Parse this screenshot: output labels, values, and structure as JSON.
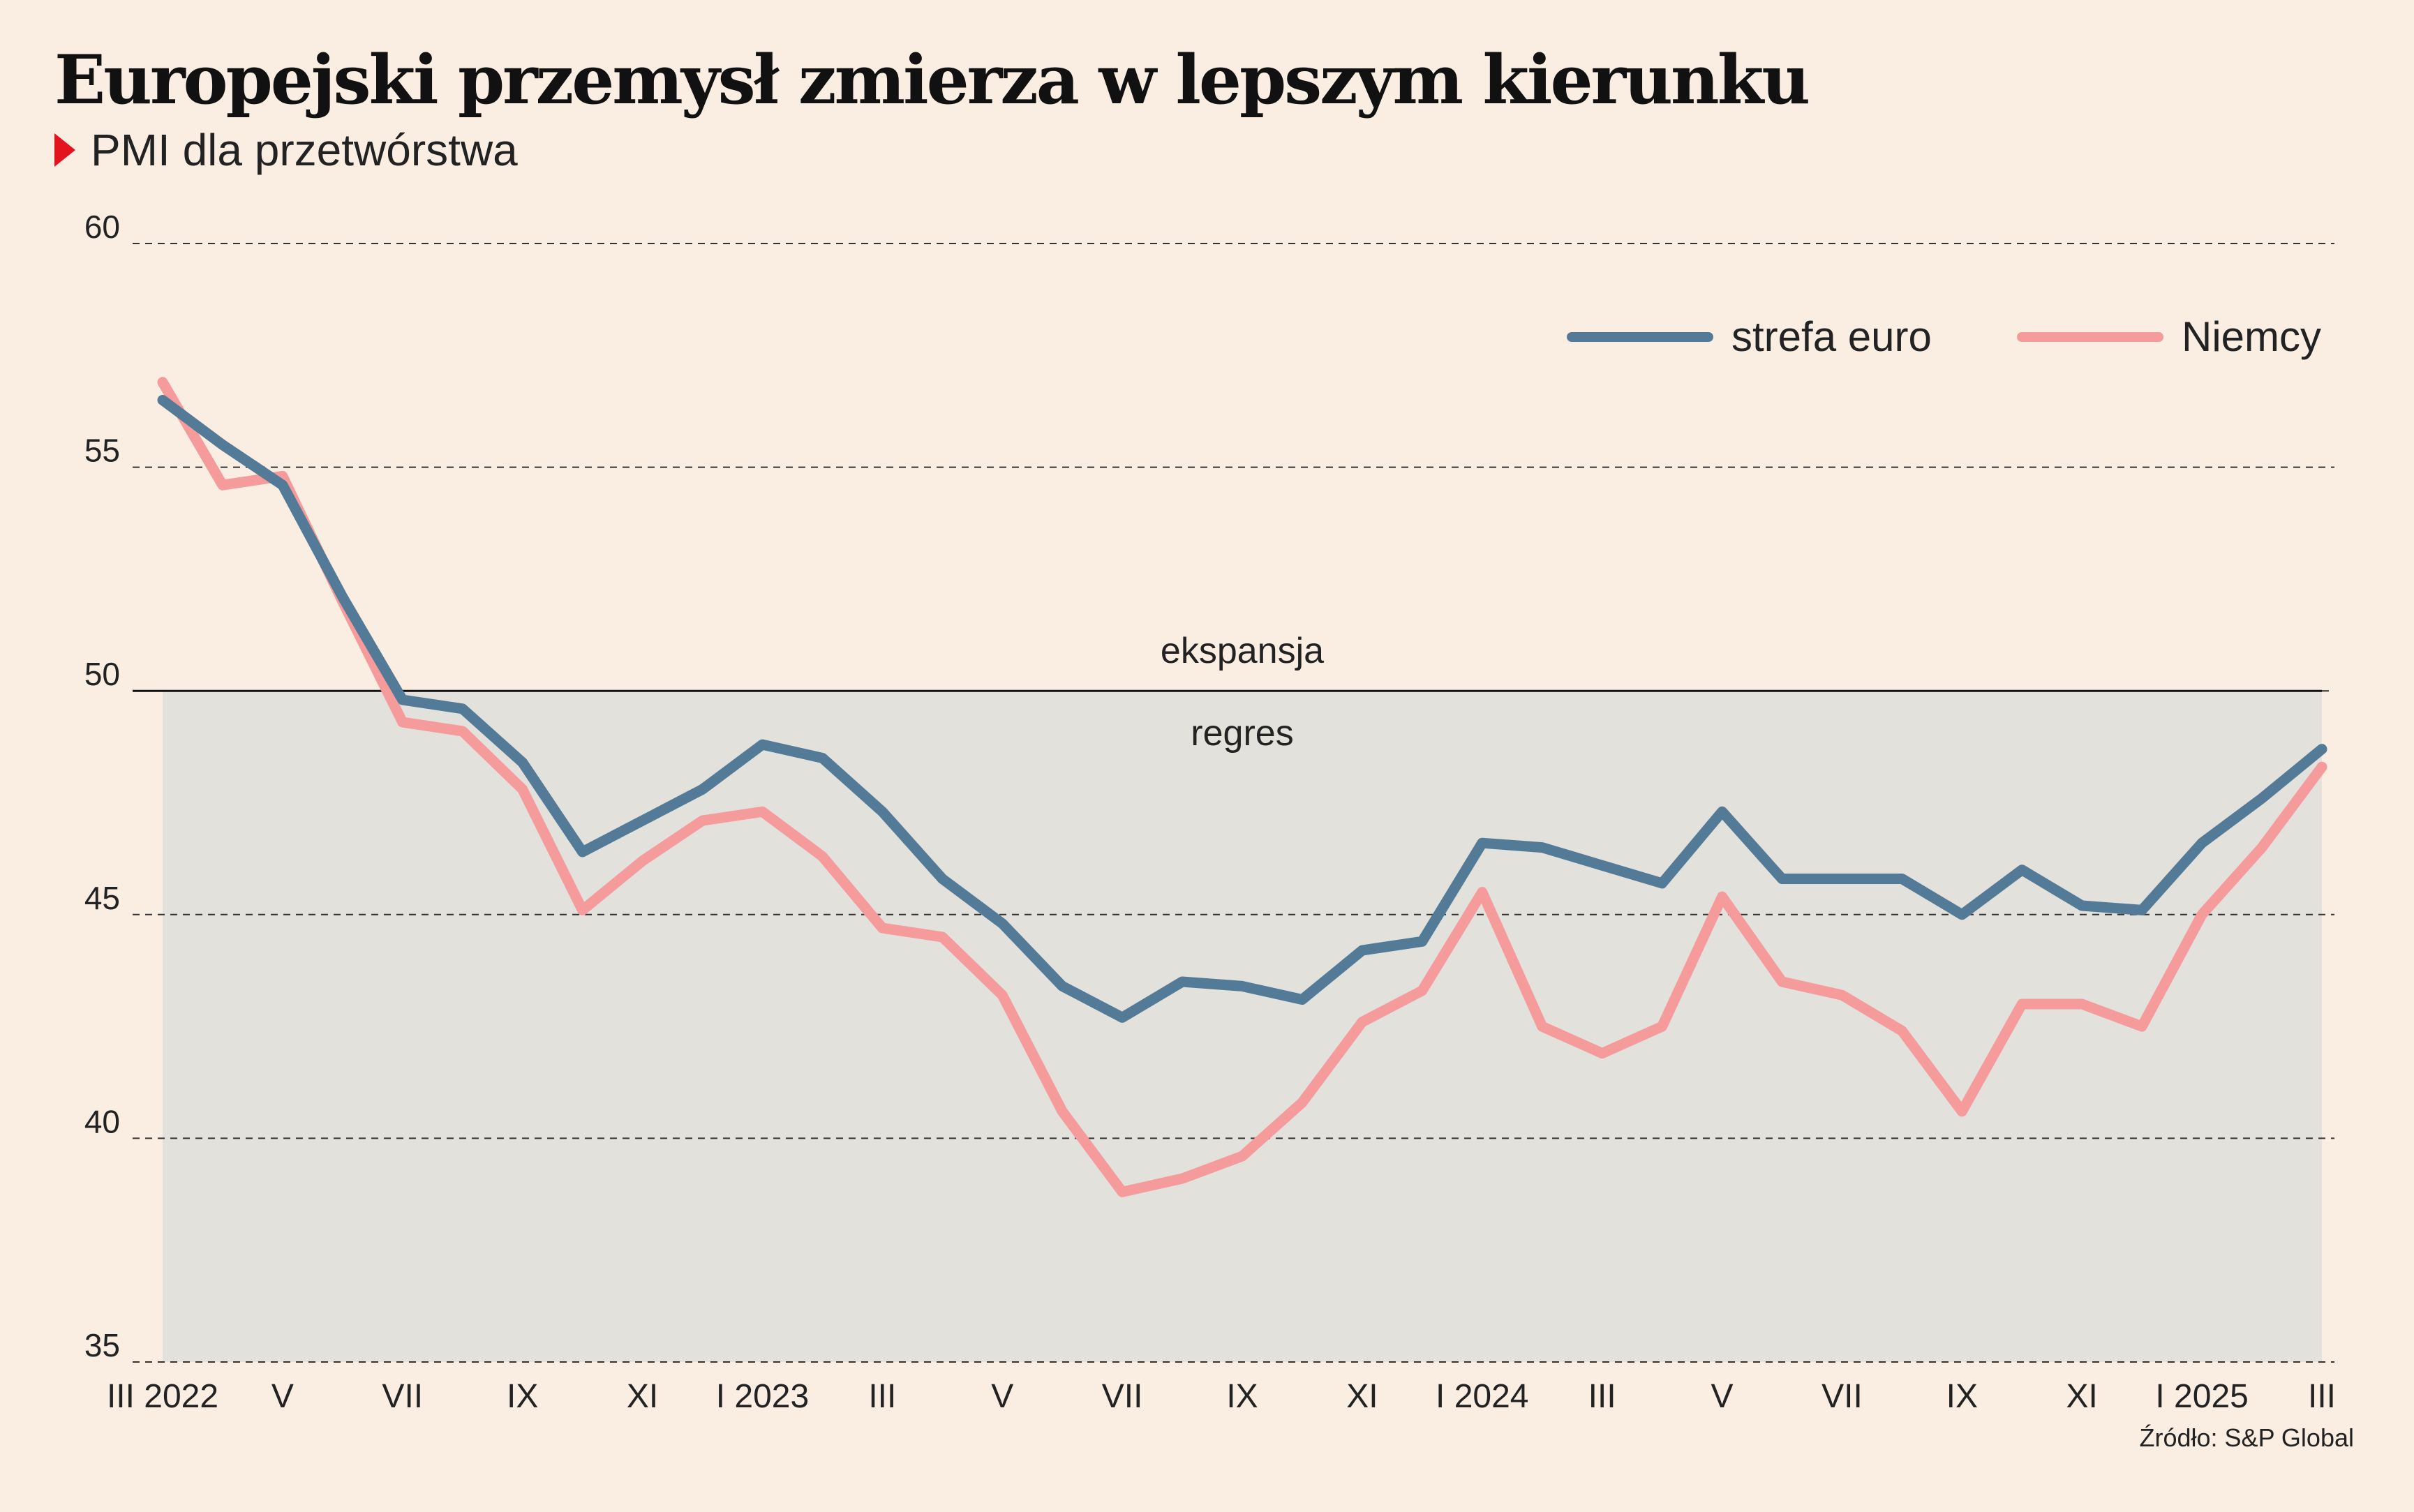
{
  "title": "Europejski przemysł zmierza w lepszym kierunku",
  "subtitle": "PMI dla przetwórstwa",
  "source": "Źródło: S&P Global",
  "colors": {
    "euro": "#537a96",
    "germany": "#f59b9b",
    "regres_band": "#e2e1dc",
    "accent": "#e3141e"
  },
  "chart_data": {
    "type": "line",
    "title": "Europejski przemysł zmierza w lepszym kierunku",
    "subtitle": "PMI dla przetwórstwa",
    "ylim": [
      35,
      60
    ],
    "yticks": [
      35,
      40,
      45,
      50,
      55,
      60
    ],
    "grid": true,
    "threshold": 50,
    "zone_labels": {
      "above": "ekspansja",
      "below": "regres"
    },
    "legend_position": "top-right",
    "x": [
      "III 2022",
      "IV 2022",
      "V 2022",
      "VI 2022",
      "VII 2022",
      "VIII 2022",
      "IX 2022",
      "X 2022",
      "XI 2022",
      "XII 2022",
      "I 2023",
      "II 2023",
      "III 2023",
      "IV 2023",
      "V 2023",
      "VI 2023",
      "VII 2023",
      "VIII 2023",
      "IX 2023",
      "X 2023",
      "XI 2023",
      "XII 2023",
      "I 2024",
      "II 2024",
      "III 2024",
      "IV 2024",
      "V 2024",
      "VI 2024",
      "VII 2024",
      "VIII 2024",
      "IX 2024",
      "X 2024",
      "XI 2024",
      "XII 2024",
      "I 2025",
      "II 2025",
      "III 2025"
    ],
    "tick_labels": [
      {
        "i": 0,
        "label": "III 2022"
      },
      {
        "i": 2,
        "label": "V"
      },
      {
        "i": 4,
        "label": "VII"
      },
      {
        "i": 6,
        "label": "IX"
      },
      {
        "i": 8,
        "label": "XI"
      },
      {
        "i": 10,
        "label": "I 2023"
      },
      {
        "i": 12,
        "label": "III"
      },
      {
        "i": 14,
        "label": "V"
      },
      {
        "i": 16,
        "label": "VII"
      },
      {
        "i": 18,
        "label": "IX"
      },
      {
        "i": 20,
        "label": "XI"
      },
      {
        "i": 22,
        "label": "I 2024"
      },
      {
        "i": 24,
        "label": "III"
      },
      {
        "i": 26,
        "label": "V"
      },
      {
        "i": 28,
        "label": "VII"
      },
      {
        "i": 30,
        "label": "IX"
      },
      {
        "i": 32,
        "label": "XI"
      },
      {
        "i": 34,
        "label": "I 2025"
      },
      {
        "i": 36,
        "label": "III"
      }
    ],
    "series": [
      {
        "name": "strefa euro",
        "color": "#537a96",
        "values": [
          56.5,
          55.5,
          54.6,
          52.1,
          49.8,
          49.6,
          48.4,
          46.4,
          47.1,
          47.8,
          48.8,
          48.5,
          47.3,
          45.8,
          44.8,
          43.4,
          42.7,
          43.5,
          43.4,
          43.1,
          44.2,
          44.4,
          46.6,
          46.5,
          46.1,
          45.7,
          47.3,
          45.8,
          45.8,
          45.8,
          45.0,
          46.0,
          45.2,
          45.1,
          46.6,
          47.6,
          48.7
        ]
      },
      {
        "name": "Niemcy",
        "color": "#f59b9b",
        "values": [
          56.9,
          54.6,
          54.8,
          52.0,
          49.3,
          49.1,
          47.8,
          45.1,
          46.2,
          47.1,
          47.3,
          46.3,
          44.7,
          44.5,
          43.2,
          40.6,
          38.8,
          39.1,
          39.6,
          40.8,
          42.6,
          43.3,
          45.5,
          42.5,
          41.9,
          42.5,
          45.4,
          43.5,
          43.2,
          42.4,
          40.6,
          43.0,
          43.0,
          42.5,
          45.0,
          46.5,
          48.3
        ]
      }
    ]
  }
}
